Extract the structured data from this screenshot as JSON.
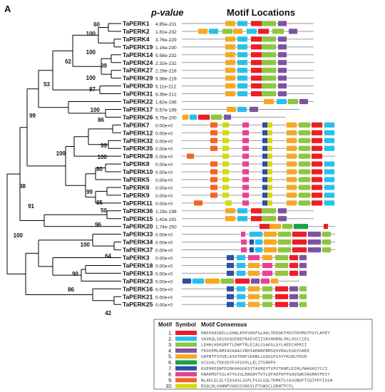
{
  "panel_label": "A",
  "headers": {
    "pvalue": "p-value",
    "motif_locations": "Motif Locations"
  },
  "motif_colors": {
    "1": "#ee1c24",
    "2": "#27c0ee",
    "3": "#8dc63f",
    "4": "#7e52a0",
    "5": "#f7a823",
    "6": "#16a34a",
    "7": "#2b4fa5",
    "8": "#ec3f96",
    "9": "#f26522",
    "10": "#d4d90f"
  },
  "genes": [
    {
      "name": "TaPERK1",
      "pvalue": "4.85e-231",
      "motifs": [
        5,
        2,
        1,
        3,
        4
      ]
    },
    {
      "name": "TaPERK2",
      "pvalue": "1.81e-232",
      "motifs": [
        5,
        2,
        3,
        5,
        2,
        1,
        3,
        4
      ]
    },
    {
      "name": "TaPERK4",
      "pvalue": "3.76e-229",
      "motifs": [
        5,
        2,
        1,
        3,
        4
      ]
    },
    {
      "name": "TaPERK19",
      "pvalue": "1.16e-230",
      "motifs": [
        5,
        2,
        1,
        3,
        4
      ]
    },
    {
      "name": "TaPERK14",
      "pvalue": "5.58e-232",
      "motifs": [
        5,
        2,
        1,
        3,
        4
      ]
    },
    {
      "name": "TaPERK24",
      "pvalue": "2.32e-232",
      "motifs": [
        5,
        2,
        1,
        3,
        4
      ]
    },
    {
      "name": "TaPERK27",
      "pvalue": "2.29e-218",
      "motifs": [
        5,
        2,
        1,
        3,
        4
      ]
    },
    {
      "name": "TaPERK29",
      "pvalue": "9.38e-219",
      "motifs": [
        5,
        2,
        1,
        3,
        4
      ]
    },
    {
      "name": "TaPERK30",
      "pvalue": "5.11e-212",
      "motifs": [
        5,
        2,
        1,
        3,
        4
      ]
    },
    {
      "name": "TaPERK31",
      "pvalue": "8.36e-212",
      "motifs": [
        5,
        2,
        1,
        3,
        4
      ]
    },
    {
      "name": "TaPERK22",
      "pvalue": "1.62e-196",
      "motifs": [
        5,
        2,
        3,
        4
      ]
    },
    {
      "name": "TaPERK17",
      "pvalue": "5.57e-199",
      "motifs": [
        5,
        2,
        4
      ]
    },
    {
      "name": "TaPERK26",
      "pvalue": "9.75e-200",
      "motifs": [
        5,
        2,
        1,
        3,
        4
      ]
    },
    {
      "name": "TaPERK7",
      "pvalue": "0.00e+0",
      "motifs": [
        9,
        10,
        8,
        7,
        10,
        5,
        3,
        1,
        2
      ]
    },
    {
      "name": "TaPERK12",
      "pvalue": "0.00e+0",
      "motifs": [
        9,
        10,
        8,
        7,
        10,
        5,
        3,
        1,
        2
      ]
    },
    {
      "name": "TaPERK32",
      "pvalue": "0.00e+0",
      "motifs": [
        9,
        10,
        8,
        7,
        10,
        5,
        3,
        1,
        2
      ]
    },
    {
      "name": "TaPERK35",
      "pvalue": "0.00e+0",
      "motifs": [
        9,
        10,
        8,
        7,
        10,
        5,
        3,
        1,
        2
      ]
    },
    {
      "name": "TaPERK28",
      "pvalue": "0.00e+0",
      "motifs": [
        9,
        10,
        8,
        7,
        10,
        5,
        3,
        1
      ]
    },
    {
      "name": "TaPERK8",
      "pvalue": "0.00e+0",
      "motifs": [
        9,
        10,
        8,
        7,
        10,
        5,
        3,
        1,
        2
      ]
    },
    {
      "name": "TaPERK10",
      "pvalue": "0.00e+0",
      "motifs": [
        9,
        10,
        8,
        7,
        10,
        5,
        3,
        1,
        2
      ]
    },
    {
      "name": "TaPERK5",
      "pvalue": "0.00e+0",
      "motifs": [
        9,
        10,
        8,
        7,
        10,
        5,
        3,
        1,
        2
      ]
    },
    {
      "name": "TaPERK6",
      "pvalue": "0.00e+0",
      "motifs": [
        9,
        10,
        8,
        7,
        10,
        5,
        3,
        1,
        2
      ]
    },
    {
      "name": "TaPERK9",
      "pvalue": "0.00e+0",
      "motifs": [
        9,
        10,
        8,
        7,
        10,
        5,
        3,
        1,
        2
      ]
    },
    {
      "name": "TaPERK11",
      "pvalue": "0.00e+0",
      "motifs": [
        9,
        10,
        8,
        7,
        10,
        5,
        3,
        1,
        2
      ]
    },
    {
      "name": "TaPERK36",
      "pvalue": "1.29e-198",
      "motifs": [
        5,
        2,
        1,
        3,
        4
      ]
    },
    {
      "name": "TaPERK15",
      "pvalue": "1.42e-191",
      "motifs": [
        5,
        2,
        1,
        3,
        4
      ]
    },
    {
      "name": "TaPERK20",
      "pvalue": "1.74e-250",
      "motifs": [
        1,
        5,
        3,
        6,
        1
      ]
    },
    {
      "name": "TaPERK33",
      "pvalue": "0.00e+0",
      "motifs": [
        8,
        2,
        5,
        3,
        1,
        4,
        3
      ]
    },
    {
      "name": "TaPERK34",
      "pvalue": "0.00e+0",
      "motifs": [
        8,
        7,
        2,
        5,
        3,
        1,
        4,
        3
      ]
    },
    {
      "name": "TaPERK37",
      "pvalue": "0.00e+0",
      "motifs": [
        8,
        7,
        2,
        5,
        3,
        1,
        4,
        3
      ]
    },
    {
      "name": "TaPERK3",
      "pvalue": "0.00e+0",
      "motifs": [
        7,
        2,
        8,
        5,
        3,
        1,
        4
      ]
    },
    {
      "name": "TaPERK18",
      "pvalue": "0.00e+0",
      "motifs": [
        7,
        2,
        5,
        8,
        3,
        1,
        4
      ]
    },
    {
      "name": "TaPERK13",
      "pvalue": "0.00e+0",
      "motifs": [
        7,
        2,
        5,
        8,
        3,
        1,
        4
      ]
    },
    {
      "name": "TaPERK23",
      "pvalue": "0.00e+0",
      "motifs": [
        7,
        2,
        5,
        3,
        1,
        4,
        8,
        5
      ]
    },
    {
      "name": "TaPERK16",
      "pvalue": "0.00e+0",
      "motifs": [
        7,
        2,
        5,
        3,
        1,
        4,
        3
      ]
    },
    {
      "name": "TaPERK21",
      "pvalue": "0.00e+0",
      "motifs": [
        7,
        2,
        5,
        3,
        1,
        4,
        3
      ]
    },
    {
      "name": "TaPERK25",
      "pvalue": "0.00e+0",
      "motifs": [
        7,
        2,
        5,
        3,
        1,
        4,
        3
      ]
    }
  ],
  "bootstrap": {
    "n60": "60",
    "n100a": "100",
    "n100b": "100",
    "n99a": "99",
    "n62": "62",
    "n100c": "100",
    "n87": "87",
    "n53": "53",
    "n100d": "100",
    "n86": "86",
    "n99b": "99",
    "n99c": "99",
    "n100e": "100",
    "n100f": "100",
    "n80": "80",
    "n99d": "99",
    "n85": "85",
    "n50": "50",
    "n98": "98",
    "n96": "96",
    "n91": "91",
    "n100g": "100",
    "n64": "64",
    "n100h": "100",
    "n90": "90",
    "n86b": "86",
    "n42": "42"
  },
  "legend": {
    "headers": {
      "motif": "Motif",
      "symbol": "Symbol",
      "consensus": "Motif Consensus"
    },
    "rows": [
      {
        "num": "1.",
        "motif": 1,
        "seq": "HRDIKASNILLDANLEPKVADFGLAKLTDDQKTHVSTRVMGTFGYLAPEY"
      },
      {
        "num": "2.",
        "motif": 2,
        "seq": "VAVKQLSEGSGQGEREFRAEVEIISRVHHRNLVKLVGCCIEG"
      },
      {
        "num": "3.",
        "motif": 3,
        "seq": "LEHHLHGKGRPTLDWPTRLEIALGSAKGLAYLHEDCHPRII"
      },
      {
        "num": "4.",
        "motif": 4,
        "seq": "FRSEEMLRMIAVAAACVRHSARRRPRMSQVVRALEGDVSAED"
      },
      {
        "num": "5.",
        "motif": 5,
        "seq": "GRPNTFSYGELASATDNFSDANLLGQGGFGSVYKGRLPDGR"
      },
      {
        "num": "6.",
        "motif": 6,
        "seq": "ASSGKLTEKSDVFSFGVVLLELITGRRPV"
      },
      {
        "num": "7.",
        "motif": 7,
        "seq": "QGEHKEQNFDIRKAAGGKSYTAVRQYTVPVTKNFLEIHLPWAGKGTCCI"
      },
      {
        "num": "8.",
        "motif": 8,
        "seq": "RNARMSFSSLAYYGIGLENGNYTVTLQFAEFDFPSAQSWKSRGRRVFDIY"
      },
      {
        "num": "9.",
        "motif": 9,
        "seq": "NLAKLELQLYIDSASLSGPLPSSLGQLTKMKTLYASGNDFTGQIPDYIGSW"
      },
      {
        "num": "10.",
        "motif": 10,
        "seq": "BSQLNLVANNFVADSSSNSVLPTGWGCLQRNTPCFL"
      }
    ]
  }
}
